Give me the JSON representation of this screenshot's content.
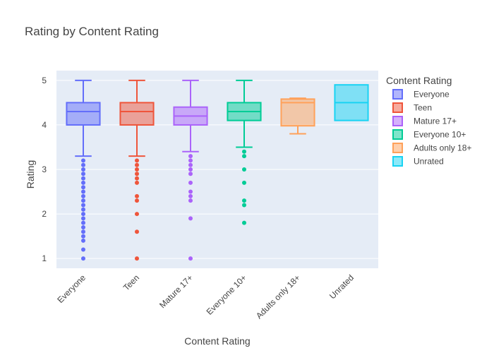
{
  "chart_data": {
    "type": "box",
    "title": "Rating by Content Rating",
    "xlabel": "Content Rating",
    "ylabel": "Rating",
    "ylim": [
      0.78,
      5.22
    ],
    "yticks": [
      1,
      2,
      3,
      4,
      5
    ],
    "grid": true,
    "legend": {
      "title": "Content Rating",
      "placement": "right"
    },
    "categories": [
      "Everyone",
      "Teen",
      "Mature 17+",
      "Everyone 10+",
      "Adults only 18+",
      "Unrated"
    ],
    "series": [
      {
        "name": "Everyone",
        "color": "#636efa",
        "min": 3.3,
        "q1": 4.0,
        "median": 4.3,
        "q3": 4.5,
        "max": 5.0,
        "outliers": [
          1.0,
          1.2,
          1.4,
          1.5,
          1.6,
          1.7,
          1.8,
          1.9,
          2.0,
          2.1,
          2.2,
          2.3,
          2.4,
          2.5,
          2.6,
          2.7,
          2.8,
          2.9,
          3.0,
          3.1,
          3.2
        ]
      },
      {
        "name": "Teen",
        "color": "#ef553b",
        "min": 3.3,
        "q1": 4.0,
        "median": 4.3,
        "q3": 4.5,
        "max": 5.0,
        "outliers": [
          1.0,
          1.6,
          2.0,
          2.3,
          2.4,
          2.7,
          2.8,
          2.9,
          3.0,
          3.1,
          3.2
        ]
      },
      {
        "name": "Mature 17+",
        "color": "#ab63fa",
        "min": 3.4,
        "q1": 4.0,
        "median": 4.2,
        "q3": 4.4,
        "max": 5.0,
        "outliers": [
          1.0,
          1.9,
          2.3,
          2.4,
          2.5,
          2.7,
          2.9,
          3.0,
          3.1,
          3.2,
          3.3
        ]
      },
      {
        "name": "Everyone 10+",
        "color": "#00cc96",
        "min": 3.5,
        "q1": 4.1,
        "median": 4.3,
        "q3": 4.5,
        "max": 5.0,
        "outliers": [
          1.8,
          2.2,
          2.3,
          2.7,
          3.0,
          3.3,
          3.4
        ]
      },
      {
        "name": "Adults only 18+",
        "color": "#ffa15a",
        "min": 3.8,
        "q1": 3.98,
        "median": 4.5,
        "q3": 4.58,
        "max": 4.6,
        "outliers": []
      },
      {
        "name": "Unrated",
        "color": "#19d3f3",
        "min": 4.1,
        "q1": 4.1,
        "median": 4.5,
        "q3": 4.9,
        "max": 4.9,
        "outliers": []
      }
    ]
  }
}
